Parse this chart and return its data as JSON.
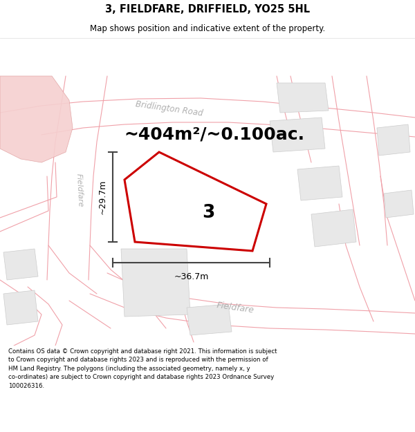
{
  "title_line1": "3, FIELDFARE, DRIFFIELD, YO25 5HL",
  "title_line2": "Map shows position and indicative extent of the property.",
  "area_text": "~404m²/~0.100ac.",
  "dim_width": "~36.7m",
  "dim_height": "~29.7m",
  "property_label": "3",
  "street1": "Bridlington Road",
  "street2_left": "Fieldfare",
  "street2_bottom": "Fieldfare",
  "footer": "Contains OS data © Crown copyright and database right 2021. This information is subject\nto Crown copyright and database rights 2023 and is reproduced with the permission of\nHM Land Registry. The polygons (including the associated geometry, namely x, y\nco-ordinates) are subject to Crown copyright and database rights 2023 Ordnance Survey\n100026316.",
  "map_bg": "#ffffff",
  "road_color": "#f0a0a8",
  "road_fill": "#fce8ea",
  "building_color": "#e8e8e8",
  "building_edge": "#cccccc",
  "property_fill": "#ffffff",
  "property_edge": "#cc0000",
  "dim_line_color": "#444444",
  "street_label_color": "#b0b0b0",
  "text_color": "#000000",
  "pink_area_fill": "#f5d0d0",
  "pink_area_edge": "#e0a0a0"
}
